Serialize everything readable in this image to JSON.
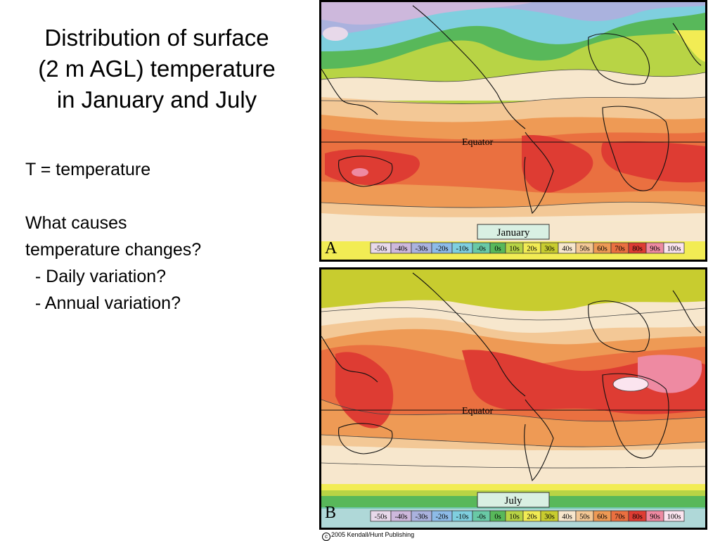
{
  "title_lines": [
    "Distribution of surface",
    "(2 m AGL) temperature",
    "in January and July"
  ],
  "body": {
    "line1": "T = temperature",
    "line2": "What causes",
    "line3": "temperature changes?",
    "line4": "  - Daily variation?",
    "line5": "  - Annual variation?"
  },
  "maps": [
    {
      "panel_letter": "A",
      "month": "January",
      "equator_label": "Equator",
      "legend": [
        {
          "label": "-50s",
          "color": "#e8d9ea"
        },
        {
          "label": "-40s",
          "color": "#cdb8dc"
        },
        {
          "label": "-30s",
          "color": "#aab2de"
        },
        {
          "label": "-20s",
          "color": "#8dbbe8"
        },
        {
          "label": "-10s",
          "color": "#7fcfdf"
        },
        {
          "label": "-0s",
          "color": "#69c9a6"
        },
        {
          "label": "0s",
          "color": "#58b85a"
        },
        {
          "label": "10s",
          "color": "#b8d445"
        },
        {
          "label": "20s",
          "color": "#f2ec54"
        },
        {
          "label": "30s",
          "color": "#c8cc2f"
        },
        {
          "label": "40s",
          "color": "#f7e7cd"
        },
        {
          "label": "50s",
          "color": "#f3c896"
        },
        {
          "label": "60s",
          "color": "#ee9a55"
        },
        {
          "label": "70s",
          "color": "#ea7040"
        },
        {
          "label": "80s",
          "color": "#de3c33"
        },
        {
          "label": "90s",
          "color": "#ee8aa2"
        },
        {
          "label": "100s",
          "color": "#fbe4ef"
        }
      ]
    },
    {
      "panel_letter": "B",
      "month": "July",
      "equator_label": "Equator",
      "legend": [
        {
          "label": "-50s",
          "color": "#e8d9ea"
        },
        {
          "label": "-40s",
          "color": "#cdb8dc"
        },
        {
          "label": "-30s",
          "color": "#aab2de"
        },
        {
          "label": "-20s",
          "color": "#8dbbe8"
        },
        {
          "label": "-10s",
          "color": "#7fcfdf"
        },
        {
          "label": "-0s",
          "color": "#69c9a6"
        },
        {
          "label": "0s",
          "color": "#58b85a"
        },
        {
          "label": "10s",
          "color": "#b8d445"
        },
        {
          "label": "20s",
          "color": "#f2ec54"
        },
        {
          "label": "30s",
          "color": "#c8cc2f"
        },
        {
          "label": "40s",
          "color": "#f7e7cd"
        },
        {
          "label": "50s",
          "color": "#f3c896"
        },
        {
          "label": "60s",
          "color": "#ee9a55"
        },
        {
          "label": "70s",
          "color": "#ea7040"
        },
        {
          "label": "80s",
          "color": "#de3c33"
        },
        {
          "label": "90s",
          "color": "#ee8aa2"
        },
        {
          "label": "100s",
          "color": "#fbe4ef"
        }
      ]
    }
  ],
  "copyright": "2005 Kendall/Hunt Publishing"
}
